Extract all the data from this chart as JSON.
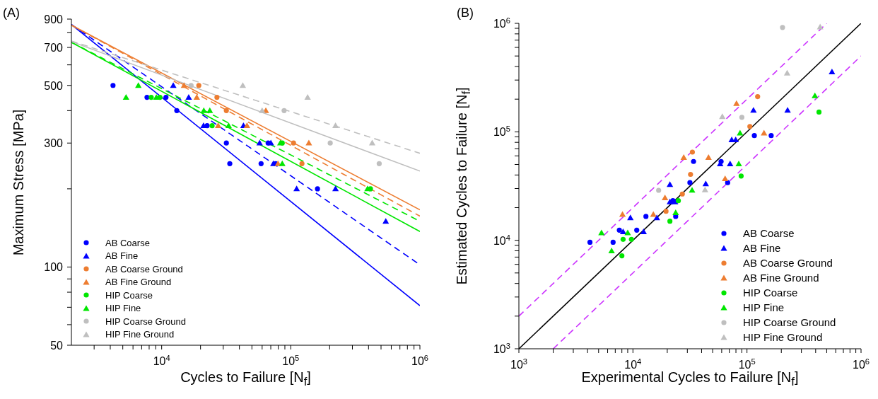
{
  "chart_data": [
    {
      "type": "scatter",
      "title": "(A)",
      "xlabel": "Cycles to Failure [N$_{f}$]",
      "ylabel": "Maximum Stress [MPa]",
      "log": "xy",
      "legend": "bottom left",
      "xlim": [
        2000,
        1000000
      ],
      "ylim": [
        50,
        900
      ],
      "xticks": [
        {
          "value": 3000,
          "label": null
        },
        {
          "value": 4000,
          "label": null
        },
        {
          "value": 5000,
          "label": null
        },
        {
          "value": 6000,
          "label": null
        },
        {
          "value": 7000,
          "label": null
        },
        {
          "value": 8000,
          "label": null
        },
        {
          "value": 9000,
          "label": null
        },
        {
          "value": 10000,
          "label": "10$^{4}$"
        },
        {
          "value": 20000,
          "label": null
        },
        {
          "value": 30000,
          "label": null
        },
        {
          "value": 40000,
          "label": null
        },
        {
          "value": 50000,
          "label": null
        },
        {
          "value": 60000,
          "label": null
        },
        {
          "value": 70000,
          "label": null
        },
        {
          "value": 80000,
          "label": null
        },
        {
          "value": 90000,
          "label": null
        },
        {
          "value": 100000,
          "label": "10$^{5}$"
        },
        {
          "value": 200000,
          "label": null
        },
        {
          "value": 300000,
          "label": null
        },
        {
          "value": 400000,
          "label": null
        },
        {
          "value": 500000,
          "label": null
        },
        {
          "value": 600000,
          "label": null
        },
        {
          "value": 700000,
          "label": null
        },
        {
          "value": 800000,
          "label": null
        },
        {
          "value": 900000,
          "label": null
        },
        {
          "value": 1000000,
          "label": "10$^{6}$"
        }
      ],
      "yticks": [
        50,
        {
          "value": 60,
          "label": null
        },
        {
          "value": 70,
          "label": null
        },
        {
          "value": 80,
          "label": null
        },
        {
          "value": 90,
          "label": null
        },
        100,
        {
          "value": 200,
          "label": null
        },
        300,
        {
          "value": 400,
          "label": null
        },
        500,
        {
          "value": 600,
          "label": null
        },
        700,
        {
          "value": 800,
          "label": null
        },
        900
      ],
      "series": [
        {
          "name": "AB Coarse",
          "color": "#0000ff",
          "marker": "circle",
          "x": [
            4200,
            7700,
            10800,
            13100,
            22500,
            31700,
            33700,
            58900,
            66800,
            76400,
            161000
          ],
          "values": [
            500,
            450,
            450,
            400,
            350,
            300,
            250,
            250,
            300,
            250,
            200
          ]
        },
        {
          "name": "AB Fine",
          "color": "#0000ff",
          "marker": "triangle",
          "x": [
            12300,
            16200,
            21100,
            43000,
            57400,
            70100,
            73300,
            111000,
            222000,
            544000
          ],
          "values": [
            500,
            450,
            350,
            350,
            300,
            300,
            250,
            200,
            200,
            150
          ]
        },
        {
          "name": "AB Coarse Ground",
          "color": "#ed7d31",
          "marker": "circle",
          "x": [
            19400,
            26800,
            31700,
            105000,
            122000
          ],
          "values": [
            500,
            450,
            400,
            300,
            250
          ]
        },
        {
          "name": "AB Fine Ground",
          "color": "#ed7d31",
          "marker": "triangle",
          "x": [
            14900,
            18700,
            27400,
            45800,
            64100,
            79600,
            138000
          ],
          "values": [
            500,
            450,
            350,
            350,
            400,
            250,
            300
          ]
        },
        {
          "name": "HIP Coarse",
          "color": "#00e600",
          "marker": "circle",
          "x": [
            8300,
            9700,
            24600,
            85900,
            414000
          ],
          "values": [
            450,
            450,
            350,
            300,
            200
          ]
        },
        {
          "name": "HIP Fine",
          "color": "#00e600",
          "marker": "triangle",
          "x": [
            5300,
            6600,
            9100,
            21200,
            23600,
            33000,
            83000,
            85900,
            393000
          ],
          "values": [
            450,
            500,
            450,
            400,
            400,
            350,
            300,
            250,
            200
          ]
        },
        {
          "name": "HIP Coarse Ground",
          "color": "#bfbfbf",
          "marker": "circle",
          "x": [
            16900,
            88800,
            202000,
            484000
          ],
          "values": [
            500,
            400,
            300,
            250
          ]
        },
        {
          "name": "HIP Fine Ground",
          "color": "#bfbfbf",
          "marker": "triangle",
          "x": [
            42500,
            60000,
            135000,
            222000,
            427000
          ],
          "values": [
            500,
            400,
            450,
            350,
            300
          ]
        },
        {
          "type": "line",
          "color": "#0000ff",
          "line_style": "solid",
          "x": [
            2000,
            1000000
          ],
          "values": [
            858,
            71
          ]
        },
        {
          "type": "line",
          "color": "#0000ff",
          "line_style": "dashed",
          "x": [
            2000,
            1000000
          ],
          "values": [
            858,
            102
          ]
        },
        {
          "type": "line",
          "color": "#ed7d31",
          "line_style": "solid",
          "x": [
            2000,
            1000000
          ],
          "values": [
            853,
            166
          ]
        },
        {
          "type": "line",
          "color": "#ed7d31",
          "line_style": "dashed",
          "x": [
            2000,
            1000000
          ],
          "values": [
            853,
            157
          ]
        },
        {
          "type": "line",
          "color": "#00e600",
          "line_style": "solid",
          "x": [
            2000,
            1000000
          ],
          "values": [
            733,
            137
          ]
        },
        {
          "type": "line",
          "color": "#00e600",
          "line_style": "dashed",
          "x": [
            2000,
            1000000
          ],
          "values": [
            733,
            150
          ]
        },
        {
          "type": "line",
          "color": "#bfbfbf",
          "line_style": "solid",
          "x": [
            2000,
            1000000
          ],
          "values": [
            738,
            234
          ]
        },
        {
          "type": "line",
          "color": "#bfbfbf",
          "line_style": "dashed",
          "x": [
            2000,
            1000000
          ],
          "values": [
            741,
            274
          ]
        }
      ]
    },
    {
      "type": "scatter",
      "title": "(B)",
      "xlabel": "Experimental Cycles to Failure [N$_{f}$]",
      "ylabel": "Estimated Cycles to Failure [N$_{f}$]",
      "log": "xy",
      "legend": "bottom right",
      "xlim": [
        1000,
        1000000
      ],
      "ylim": [
        1000,
        1000000
      ],
      "xticks": [
        {
          "value": 1000,
          "label": "10$^{3}$"
        },
        {
          "value": 2000,
          "label": null
        },
        {
          "value": 3000,
          "label": null
        },
        {
          "value": 4000,
          "label": null
        },
        {
          "value": 5000,
          "label": null
        },
        {
          "value": 6000,
          "label": null
        },
        {
          "value": 7000,
          "label": null
        },
        {
          "value": 8000,
          "label": null
        },
        {
          "value": 9000,
          "label": null
        },
        {
          "value": 10000,
          "label": "10$^{4}$"
        },
        {
          "value": 20000,
          "label": null
        },
        {
          "value": 30000,
          "label": null
        },
        {
          "value": 40000,
          "label": null
        },
        {
          "value": 50000,
          "label": null
        },
        {
          "value": 60000,
          "label": null
        },
        {
          "value": 70000,
          "label": null
        },
        {
          "value": 80000,
          "label": null
        },
        {
          "value": 90000,
          "label": null
        },
        {
          "value": 100000,
          "label": "10$^{5}$"
        },
        {
          "value": 200000,
          "label": null
        },
        {
          "value": 300000,
          "label": null
        },
        {
          "value": 400000,
          "label": null
        },
        {
          "value": 500000,
          "label": null
        },
        {
          "value": 600000,
          "label": null
        },
        {
          "value": 700000,
          "label": null
        },
        {
          "value": 800000,
          "label": null
        },
        {
          "value": 900000,
          "label": null
        },
        {
          "value": 1000000,
          "label": "10$^{6}$"
        }
      ],
      "yticks": [
        {
          "value": 1000,
          "label": "10$^{3}$"
        },
        {
          "value": 2000,
          "label": null
        },
        {
          "value": 3000,
          "label": null
        },
        {
          "value": 4000,
          "label": null
        },
        {
          "value": 5000,
          "label": null
        },
        {
          "value": 6000,
          "label": null
        },
        {
          "value": 7000,
          "label": null
        },
        {
          "value": 8000,
          "label": null
        },
        {
          "value": 9000,
          "label": null
        },
        {
          "value": 10000,
          "label": "10$^{4}$"
        },
        {
          "value": 20000,
          "label": null
        },
        {
          "value": 30000,
          "label": null
        },
        {
          "value": 40000,
          "label": null
        },
        {
          "value": 50000,
          "label": null
        },
        {
          "value": 60000,
          "label": null
        },
        {
          "value": 70000,
          "label": null
        },
        {
          "value": 80000,
          "label": null
        },
        {
          "value": 90000,
          "label": null
        },
        {
          "value": 100000,
          "label": "10$^{5}$"
        },
        {
          "value": 200000,
          "label": null
        },
        {
          "value": 300000,
          "label": null
        },
        {
          "value": 400000,
          "label": null
        },
        {
          "value": 500000,
          "label": null
        },
        {
          "value": 600000,
          "label": null
        },
        {
          "value": 700000,
          "label": null
        },
        {
          "value": 800000,
          "label": null
        },
        {
          "value": 900000,
          "label": null
        },
        {
          "value": 1000000,
          "label": "10$^{6}$"
        }
      ],
      "series": [
        {
          "name": "AB Coarse",
          "color": "#0000ff",
          "marker": "circle",
          "x": [
            4200,
            6700,
            7600,
            10800,
            13000,
            23700,
            22400,
            31600,
            34000,
            59300,
            67700,
            116000,
            163000
          ],
          "values": [
            9600,
            9600,
            12400,
            12400,
            16600,
            16600,
            23200,
            34000,
            53300,
            53300,
            34000,
            92300,
            92300
          ]
        },
        {
          "name": "AB Fine",
          "color": "#0000ff",
          "marker": "triangle",
          "x": [
            8200,
            9500,
            12400,
            16200,
            21100,
            23400,
            21100,
            43500,
            58200,
            71100,
            73500,
            79600,
            114000,
            227000,
            556000
          ],
          "values": [
            12000,
            16100,
            12000,
            16100,
            22600,
            22600,
            32700,
            33100,
            50700,
            50700,
            84300,
            84300,
            158000,
            158000,
            357000
          ]
        },
        {
          "name": "AB Coarse Ground",
          "color": "#ed7d31",
          "marker": "circle",
          "x": [
            19500,
            27100,
            32000,
            33200,
            106000,
            124000
          ],
          "values": [
            18500,
            26700,
            40500,
            65000,
            112000,
            211000
          ]
        },
        {
          "name": "AB Fine Ground",
          "color": "#ed7d31",
          "marker": "triangle",
          "x": [
            8100,
            15100,
            19100,
            27900,
            46000,
            64300,
            80900,
            141000
          ],
          "values": [
            17300,
            17300,
            24600,
            58000,
            58000,
            37000,
            182000,
            97200
          ]
        },
        {
          "name": "HIP Coarse",
          "color": "#00e600",
          "marker": "circle",
          "x": [
            8200,
            9700,
            8000,
            21100,
            25000,
            88900,
            428000
          ],
          "values": [
            10200,
            10200,
            7200,
            15000,
            23200,
            39100,
            152000
          ]
        },
        {
          "name": "HIP Fine",
          "color": "#00e600",
          "marker": "triangle",
          "x": [
            5300,
            6500,
            9000,
            23700,
            33000,
            84700,
            86900,
            394000
          ],
          "values": [
            11700,
            8000,
            11700,
            18000,
            29000,
            50700,
            97200,
            215000
          ]
        },
        {
          "name": "HIP Coarse Ground",
          "color": "#bfbfbf",
          "marker": "circle",
          "x": [
            16800,
            90200,
            205000
          ],
          "values": [
            28900,
            136000,
            916000
          ]
        },
        {
          "name": "HIP Fine Ground",
          "color": "#bfbfbf",
          "marker": "triangle",
          "x": [
            42900,
            60800,
            225000,
            438000
          ],
          "values": [
            29200,
            138000,
            348000,
            925000
          ]
        },
        {
          "type": "line",
          "color": "#000000",
          "line_style": "solid",
          "x": [
            1000,
            1000000
          ],
          "values": [
            1000,
            1000000
          ]
        },
        {
          "type": "line",
          "color": "#cc33ff",
          "line_style": "dashed",
          "x": [
            1000,
            500000
          ],
          "values": [
            2000,
            1000000
          ]
        },
        {
          "type": "line",
          "color": "#cc33ff",
          "line_style": "dashed",
          "x": [
            2000,
            1000000
          ],
          "values": [
            1000,
            500000
          ]
        }
      ]
    }
  ]
}
